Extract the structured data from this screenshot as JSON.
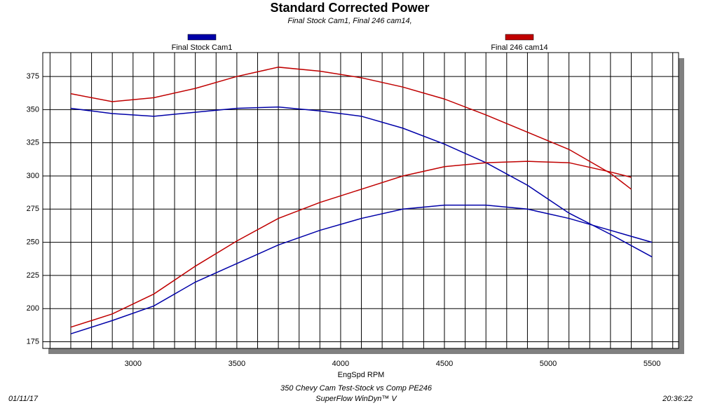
{
  "chart_data": {
    "type": "line",
    "title": "Standard Corrected Power",
    "subtitle": "Final Stock Cam1, Final 246 cam14,",
    "x_label": "EngSpd RPM",
    "footer": [
      "350 Chevy Cam Test-Stock vs Comp PE246",
      "SuperFlow WinDyn™ V"
    ],
    "date": "01/11/17",
    "time": "20:36:22",
    "xlim": [
      2565,
      5628
    ],
    "ylim": [
      170,
      393
    ],
    "xticks": [
      3000,
      3500,
      4000,
      4500,
      5000,
      5500
    ],
    "xminorticks": [
      2600,
      2700,
      2800,
      2900,
      3000,
      3100,
      3200,
      3300,
      3400,
      3500,
      3600,
      3700,
      3800,
      3900,
      4000,
      4100,
      4200,
      4300,
      4400,
      4500,
      4600,
      4700,
      4800,
      4900,
      5000,
      5100,
      5200,
      5300,
      5400,
      5500,
      5600
    ],
    "yticks": [
      175,
      200,
      225,
      250,
      275,
      300,
      325,
      350,
      375
    ],
    "grid": true,
    "series": [
      {
        "name": "Final Stock Cam1",
        "color": "#0000a8",
        "x": [
          2700,
          2900,
          3100,
          3300,
          3500,
          3700,
          3900,
          4100,
          4300,
          4500,
          4700,
          4900,
          5100,
          5300,
          5500
        ],
        "curves": [
          [
            351,
            347,
            345,
            348,
            351,
            352,
            349,
            345,
            336,
            324,
            310,
            293,
            272,
            256,
            239
          ],
          [
            181,
            191,
            202,
            220,
            234,
            248,
            259,
            268,
            275,
            278,
            278,
            275,
            268,
            259,
            250
          ]
        ]
      },
      {
        "name": "Final 246 cam14",
        "color": "#c00000",
        "x": [
          2700,
          2900,
          3100,
          3300,
          3500,
          3700,
          3900,
          4100,
          4300,
          4500,
          4700,
          4900,
          5100,
          5300,
          5400
        ],
        "curves": [
          [
            362,
            356,
            359,
            366,
            375,
            382,
            379,
            374,
            367,
            358,
            346,
            333,
            320,
            302,
            290
          ],
          [
            186,
            196,
            211,
            232,
            251,
            268,
            280,
            290,
            300,
            307,
            310,
            311,
            310,
            303,
            299
          ]
        ]
      }
    ]
  }
}
